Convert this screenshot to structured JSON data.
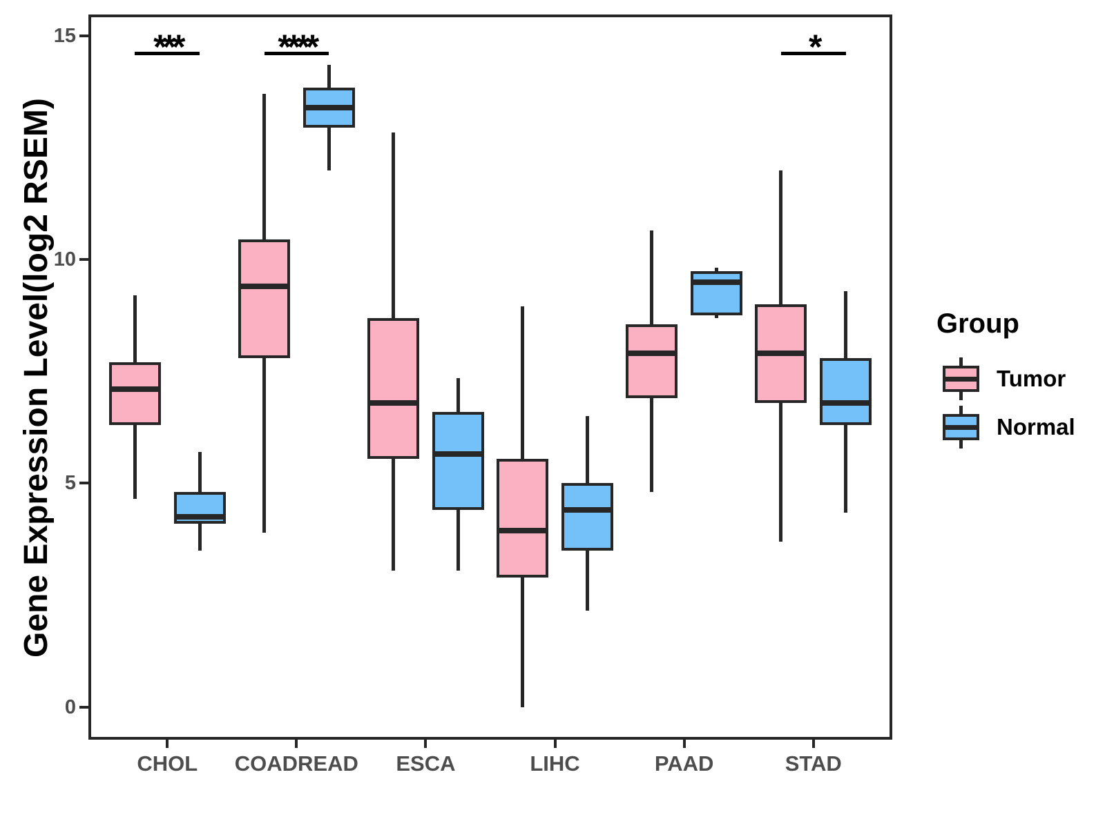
{
  "colors": {
    "tumor_fill": "#FCB1C3",
    "normal_fill": "#74C0F8",
    "stroke": "#262626",
    "tick_text": "#4D4D4D",
    "axis_title_text": "#000000",
    "background": "#FFFFFF"
  },
  "legend": {
    "title": "Group",
    "items": [
      {
        "label": "Tumor",
        "color": "#FCB1C3"
      },
      {
        "label": "Normal",
        "color": "#74C0F8"
      }
    ]
  },
  "chart_data": {
    "type": "boxplot",
    "title": "",
    "xlabel": "",
    "ylabel": "Gene Expression Level(log2 RSEM)",
    "ylim": [
      -0.7,
      15.45
    ],
    "yticks": [
      0,
      5,
      10,
      15
    ],
    "grid": false,
    "legend_position": "right",
    "categories": [
      "CHOL",
      "COADREAD",
      "ESCA",
      "LIHC",
      "PAAD",
      "STAD"
    ],
    "series": [
      {
        "name": "Tumor",
        "color": "#FCB1C3",
        "boxes": [
          {
            "category": "CHOL",
            "lo": 4.65,
            "q1": 6.3,
            "med": 7.1,
            "q3": 7.7,
            "hi": 9.2
          },
          {
            "category": "COADREAD",
            "lo": 3.9,
            "q1": 7.8,
            "med": 9.4,
            "q3": 10.45,
            "hi": 13.7
          },
          {
            "category": "ESCA",
            "lo": 3.05,
            "q1": 5.55,
            "med": 6.8,
            "q3": 8.7,
            "hi": 12.85
          },
          {
            "category": "LIHC",
            "lo": 0.0,
            "q1": 2.9,
            "med": 3.95,
            "q3": 5.55,
            "hi": 8.95
          },
          {
            "category": "PAAD",
            "lo": 4.8,
            "q1": 6.9,
            "med": 7.9,
            "q3": 8.55,
            "hi": 10.65
          },
          {
            "category": "STAD",
            "lo": 3.7,
            "q1": 6.8,
            "med": 7.9,
            "q3": 9.0,
            "hi": 12.0
          }
        ]
      },
      {
        "name": "Normal",
        "color": "#74C0F8",
        "boxes": [
          {
            "category": "CHOL",
            "lo": 3.5,
            "q1": 4.1,
            "med": 4.25,
            "q3": 4.8,
            "hi": 5.7
          },
          {
            "category": "COADREAD",
            "lo": 12.0,
            "q1": 12.95,
            "med": 13.4,
            "q3": 13.85,
            "hi": 14.35
          },
          {
            "category": "ESCA",
            "lo": 3.05,
            "q1": 4.4,
            "med": 5.65,
            "q3": 6.6,
            "hi": 7.35
          },
          {
            "category": "LIHC",
            "lo": 2.15,
            "q1": 3.5,
            "med": 4.4,
            "q3": 5.0,
            "hi": 6.5
          },
          {
            "category": "PAAD",
            "lo": 8.7,
            "q1": 8.75,
            "med": 9.5,
            "q3": 9.75,
            "hi": 9.82
          },
          {
            "category": "STAD",
            "lo": 4.35,
            "q1": 6.3,
            "med": 6.8,
            "q3": 7.8,
            "hi": 9.3
          }
        ]
      }
    ],
    "significance": [
      {
        "category": "CHOL",
        "label": "***",
        "y": 14.65
      },
      {
        "category": "COADREAD",
        "label": "****",
        "y": 14.65
      },
      {
        "category": "STAD",
        "label": "*",
        "y": 14.65
      }
    ]
  }
}
